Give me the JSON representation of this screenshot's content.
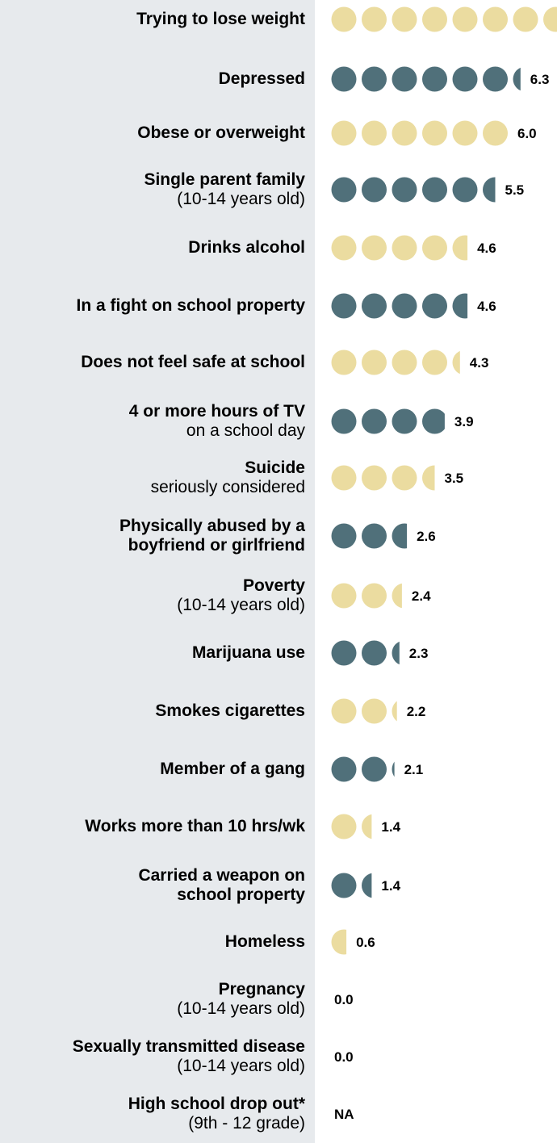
{
  "colors": {
    "panel": "#e7eaed",
    "dot_light": "#ebdca0",
    "dot_dark": "#50707a"
  },
  "chart_data": {
    "type": "pictograph",
    "unit_per_dot": 1,
    "rows": [
      {
        "label": "Trying to lose weight",
        "sublabel": "",
        "value": 8.0,
        "value_label": "",
        "color": "light"
      },
      {
        "label": "Depressed",
        "sublabel": "",
        "value": 6.3,
        "value_label": "6.3",
        "color": "dark"
      },
      {
        "label": "Obese or overweight",
        "sublabel": "",
        "value": 6.0,
        "value_label": "6.0",
        "color": "light"
      },
      {
        "label": "Single parent family",
        "sublabel": "(10-14 years old)",
        "value": 5.5,
        "value_label": "5.5",
        "color": "dark"
      },
      {
        "label": "Drinks alcohol",
        "sublabel": "",
        "value": 4.6,
        "value_label": "4.6",
        "color": "light"
      },
      {
        "label": "In a fight on school property",
        "sublabel": "",
        "value": 4.6,
        "value_label": "4.6",
        "color": "dark"
      },
      {
        "label": "Does not feel safe at school",
        "sublabel": "",
        "value": 4.3,
        "value_label": "4.3",
        "color": "light"
      },
      {
        "label": "4 or more hours of TV",
        "sublabel": "on a school day",
        "value": 3.9,
        "value_label": "3.9",
        "color": "dark"
      },
      {
        "label": "Suicide",
        "sublabel": "seriously considered",
        "value": 3.5,
        "value_label": "3.5",
        "color": "light"
      },
      {
        "label": "Physically abused by a",
        "sublabel": "boyfriend or girlfriend",
        "sublabel_bold": true,
        "value": 2.6,
        "value_label": "2.6",
        "color": "dark"
      },
      {
        "label": "Poverty",
        "sublabel": "(10-14 years old)",
        "value": 2.4,
        "value_label": "2.4",
        "color": "light"
      },
      {
        "label": "Marijuana use",
        "sublabel": "",
        "value": 2.3,
        "value_label": "2.3",
        "color": "dark"
      },
      {
        "label": "Smokes cigarettes",
        "sublabel": "",
        "value": 2.2,
        "value_label": "2.2",
        "color": "light"
      },
      {
        "label": "Member of a gang",
        "sublabel": "",
        "value": 2.1,
        "value_label": "2.1",
        "color": "dark"
      },
      {
        "label": "Works more than 10 hrs/wk",
        "sublabel": "",
        "value": 1.4,
        "value_label": "1.4",
        "color": "light"
      },
      {
        "label": "Carried a weapon on",
        "sublabel": "school property",
        "sublabel_bold": true,
        "value": 1.4,
        "value_label": "1.4",
        "color": "dark"
      },
      {
        "label": "Homeless",
        "sublabel": "",
        "value": 0.6,
        "value_label": "0.6",
        "color": "light"
      },
      {
        "label": "Pregnancy",
        "sublabel": "(10-14 years old)",
        "value": 0.0,
        "value_label": "0.0",
        "color": "dark"
      },
      {
        "label": "Sexually transmitted disease",
        "sublabel": "(10-14 years old)",
        "value": 0.0,
        "value_label": "0.0",
        "color": "light"
      },
      {
        "label": "High school drop out*",
        "sublabel": "(9th - 12 grade)",
        "value": null,
        "value_label": "NA",
        "color": "dark"
      }
    ]
  }
}
